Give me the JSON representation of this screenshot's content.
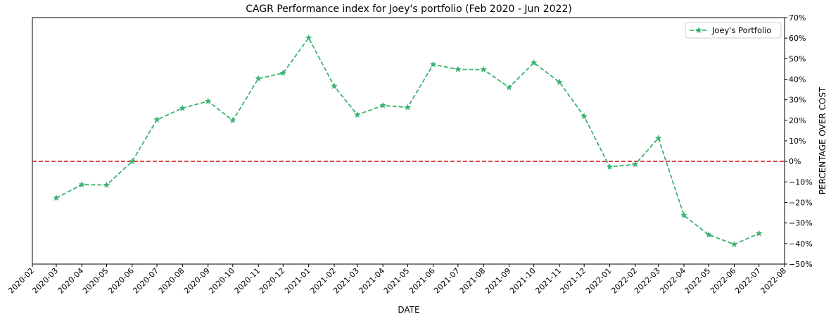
{
  "chart_data": {
    "type": "line",
    "title": "CAGR Performance index for Joey's portfolio (Feb 2020 - Jun 2022)",
    "xlabel": "DATE",
    "ylabel": "PERCENTAGE OVER COST",
    "ylim": [
      -50,
      70
    ],
    "xlim": [
      "2020-02-01",
      "2022-08-01"
    ],
    "y_ticks": [
      -50,
      -40,
      -30,
      -20,
      -10,
      0,
      10,
      20,
      30,
      40,
      50,
      60,
      70
    ],
    "y_tick_labels": [
      "−50%",
      "−40%",
      "−30%",
      "−20%",
      "−10%",
      "0%",
      "10%",
      "20%",
      "30%",
      "40%",
      "50%",
      "60%",
      "70%"
    ],
    "y_axis_side": "right",
    "x_tick_labels": [
      "2020-02",
      "2020-03",
      "2020-04",
      "2020-05",
      "2020-06",
      "2020-07",
      "2020-08",
      "2020-09",
      "2020-10",
      "2020-11",
      "2020-12",
      "2021-01",
      "2021-02",
      "2021-03",
      "2021-04",
      "2021-05",
      "2021-06",
      "2021-07",
      "2021-08",
      "2021-09",
      "2021-10",
      "2021-11",
      "2021-12",
      "2022-01",
      "2022-02",
      "2022-03",
      "2022-04",
      "2022-05",
      "2022-06",
      "2022-07",
      "2022-08"
    ],
    "grid": false,
    "legend": {
      "placement": "top-right",
      "entries": [
        "Joey's Portfolio"
      ]
    },
    "reference_line": {
      "y": 0,
      "color": "#d62728",
      "style": "dashed"
    },
    "series": [
      {
        "name": "Joey's Portfolio",
        "color": "#3cb371",
        "marker": "star",
        "line_style": "dashed",
        "x": [
          "2020-03",
          "2020-04",
          "2020-05",
          "2020-06",
          "2020-07",
          "2020-08",
          "2020-09",
          "2020-10",
          "2020-11",
          "2020-12",
          "2021-01",
          "2021-02",
          "2021-03",
          "2021-04",
          "2021-05",
          "2021-06",
          "2021-07",
          "2021-08",
          "2021-09",
          "2021-10",
          "2021-11",
          "2021-12",
          "2022-01",
          "2022-02",
          "2022-03",
          "2022-04",
          "2022-05",
          "2022-06",
          "2022-07"
        ],
        "values": [
          -17.8,
          -11.3,
          -11.5,
          0.0,
          20.3,
          25.9,
          29.3,
          19.9,
          40.3,
          43.0,
          60.1,
          36.6,
          22.7,
          27.2,
          26.3,
          47.2,
          44.8,
          44.7,
          36.0,
          48.0,
          38.6,
          21.9,
          -2.7,
          -1.4,
          11.3,
          -26.3,
          -35.7,
          -40.4,
          -35.1
        ]
      }
    ]
  }
}
